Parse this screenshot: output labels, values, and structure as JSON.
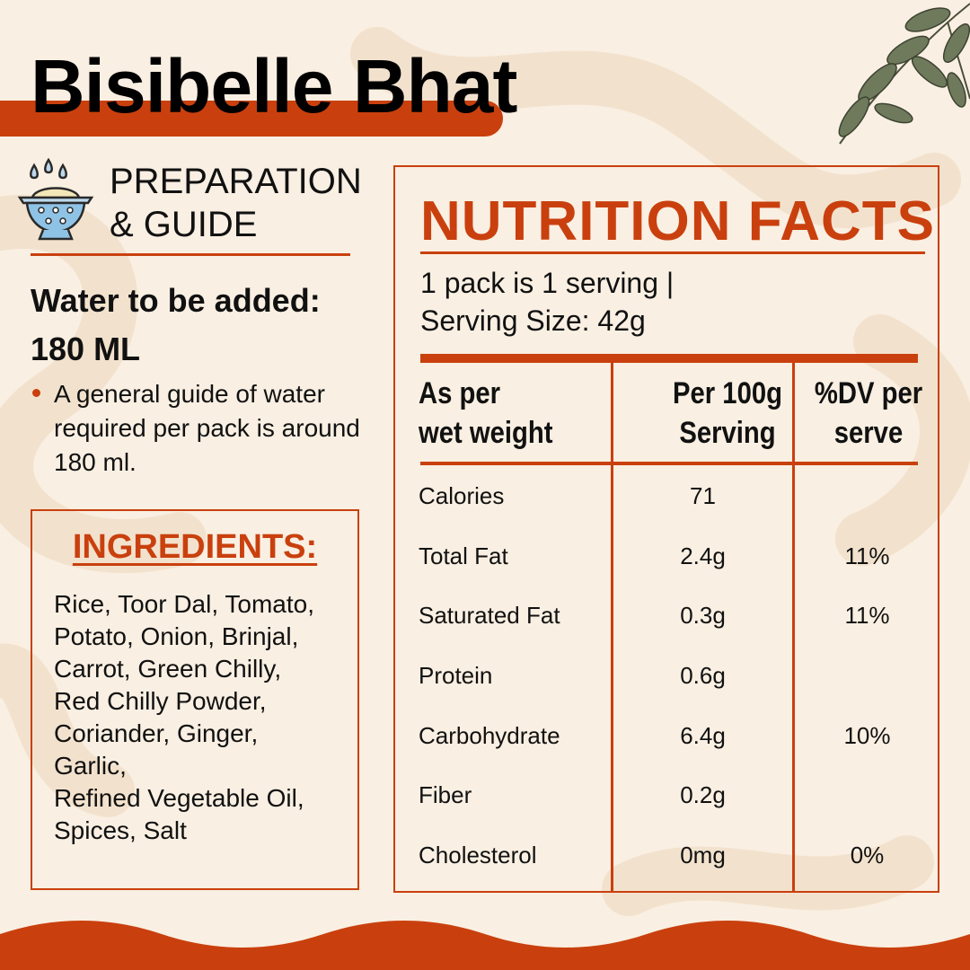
{
  "title": "Bisibelle Bhat",
  "preparation": {
    "heading_line1": "PREPARATION",
    "heading_line2": "& GUIDE",
    "icon": "colander-icon",
    "water_label": "Water to be added:",
    "water_amount": "180 ML",
    "note": "A general guide of water required per pack is around 180 ml."
  },
  "ingredients": {
    "heading": "INGREDIENTS:",
    "lines": [
      "Rice, Toor Dal, Tomato,",
      "Potato, Onion, Brinjal,",
      "Carrot, Green Chilly,",
      "Red Chilly Powder,",
      "Coriander, Ginger,",
      "Garlic,",
      "Refined Vegetable Oil,",
      "Spices, Salt"
    ]
  },
  "nutrition": {
    "heading": "NUTRITION FACTS",
    "serving_line1": "1 pack is 1 serving |",
    "serving_line2": "Serving Size: 42g",
    "col1_line1": "As per",
    "col1_line2": "wet weight",
    "col2_line1": "Per 100g",
    "col2_line2": "Serving",
    "col3_line1": "%DV per",
    "col3_line2": "serve",
    "rows": [
      {
        "name": "Calories",
        "per100g": "71",
        "dv": ""
      },
      {
        "name": "Total Fat",
        "per100g": "2.4g",
        "dv": "11%"
      },
      {
        "name": "Saturated Fat",
        "per100g": "0.3g",
        "dv": "11%"
      },
      {
        "name": "Protein",
        "per100g": "0.6g",
        "dv": ""
      },
      {
        "name": "Carbohydrate",
        "per100g": "6.4g",
        "dv": "10%"
      },
      {
        "name": "Fiber",
        "per100g": "0.2g",
        "dv": ""
      },
      {
        "name": "Cholesterol",
        "per100g": "0mg",
        "dv": "0%"
      }
    ]
  },
  "colors": {
    "accent": "#c9400e",
    "background": "#f9efe2",
    "text": "#111111"
  }
}
